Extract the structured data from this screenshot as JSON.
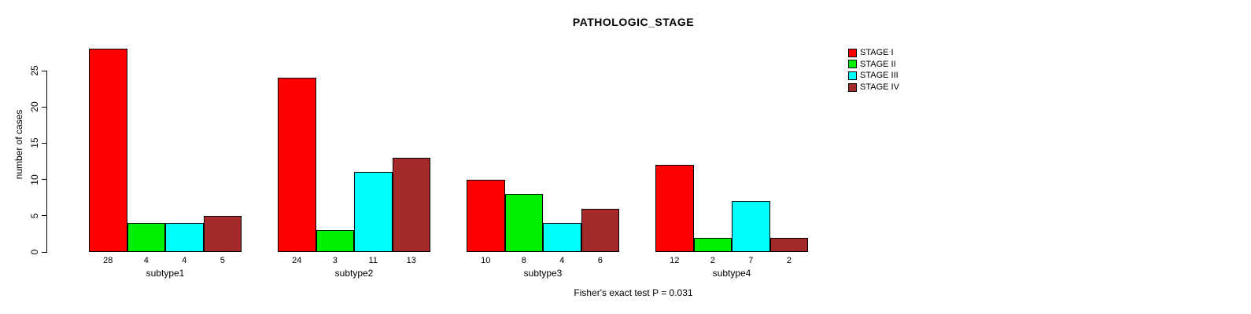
{
  "chart_data": {
    "type": "bar",
    "title": "PATHOLOGIC_STAGE",
    "xlabel": "",
    "ylabel": "number of cases",
    "ylim": [
      0,
      28
    ],
    "yticks": [
      0,
      5,
      10,
      15,
      20,
      25
    ],
    "grid": false,
    "legend_position": "top-right-outside",
    "bar_value_labels_shown": true,
    "categories": [
      "subtype1",
      "subtype2",
      "subtype3",
      "subtype4"
    ],
    "series": [
      {
        "name": "STAGE I",
        "color": "#FF0000",
        "values": [
          28,
          24,
          10,
          12
        ]
      },
      {
        "name": "STAGE II",
        "color": "#00EE00",
        "values": [
          4,
          3,
          8,
          2
        ]
      },
      {
        "name": "STAGE III",
        "color": "#00FFFF",
        "values": [
          4,
          11,
          4,
          7
        ]
      },
      {
        "name": "STAGE IV",
        "color": "#A52A2A",
        "values": [
          5,
          13,
          6,
          2
        ]
      }
    ],
    "footer": "Fisher's exact test P = 0.031"
  },
  "colors": {
    "background": "#FFFFFF",
    "axis": "#000000",
    "text": "#000000",
    "bar_border": "#000000"
  }
}
